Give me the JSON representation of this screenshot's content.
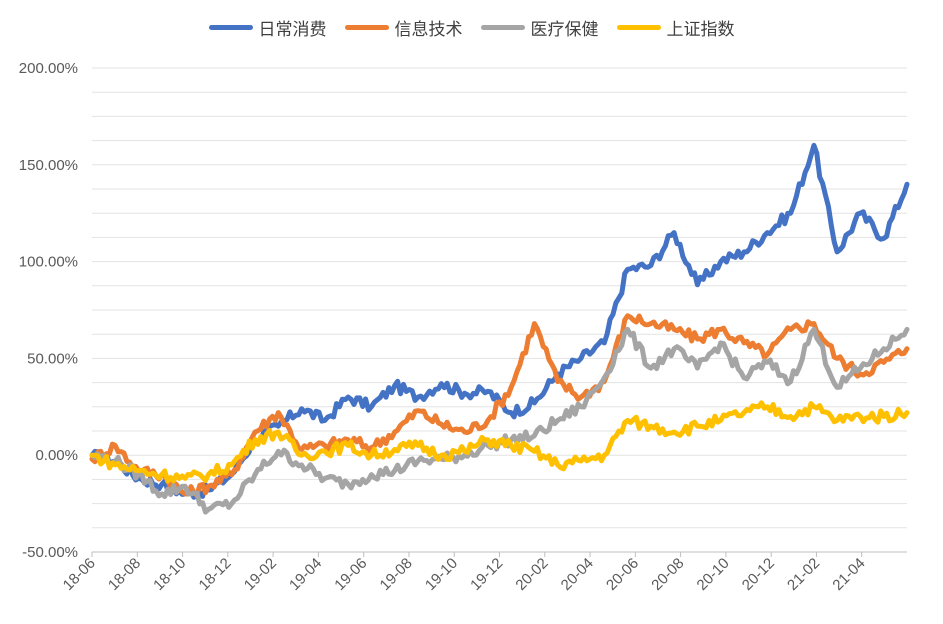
{
  "chart_data": {
    "type": "line",
    "title": "",
    "xlabel": "",
    "ylabel": "",
    "ylim": [
      -50,
      200
    ],
    "y_ticks": [
      -50,
      0,
      50,
      100,
      150,
      200
    ],
    "y_tick_labels": [
      "-50.00%",
      "0.00%",
      "50.00%",
      "100.00%",
      "150.00%",
      "200.00%"
    ],
    "x_ticks": [
      "18-06",
      "18-08",
      "18-10",
      "18-12",
      "19-02",
      "19-04",
      "19-06",
      "19-08",
      "19-10",
      "19-12",
      "20-02",
      "20-04",
      "20-06",
      "20-08",
      "20-10",
      "20-12",
      "21-02",
      "21-04"
    ],
    "grid": true,
    "legend_position": "top",
    "x": [
      0,
      1,
      2,
      3,
      4,
      5,
      6,
      7,
      8,
      9,
      10,
      11,
      12,
      13,
      14,
      15,
      16,
      17,
      18,
      19,
      20,
      21,
      22,
      23,
      24,
      25,
      26,
      27,
      28,
      29,
      30,
      31,
      32,
      33,
      34,
      35
    ],
    "series": [
      {
        "name": "日常消费",
        "color": "#4472c4",
        "values": [
          0,
          -3,
          -12,
          -15,
          -20,
          -18,
          -10,
          8,
          15,
          24,
          18,
          30,
          25,
          36,
          30,
          37,
          32,
          33,
          22,
          27,
          42,
          50,
          58,
          96,
          98,
          115,
          88,
          100,
          105,
          115,
          125,
          160,
          105,
          125,
          112,
          140
        ]
      },
      {
        "name": "信息技术",
        "color": "#ed7d31",
        "values": [
          -2,
          5,
          -8,
          -10,
          -20,
          -16,
          -10,
          12,
          22,
          3,
          5,
          8,
          4,
          12,
          23,
          16,
          12,
          18,
          35,
          68,
          38,
          30,
          38,
          72,
          68,
          65,
          60,
          65,
          58,
          52,
          65,
          68,
          50,
          42,
          48,
          55
        ]
      },
      {
        "name": "医疗保健",
        "color": "#a5a5a5",
        "values": [
          0,
          -3,
          -10,
          -20,
          -16,
          -28,
          -25,
          -10,
          2,
          -5,
          -12,
          -15,
          -10,
          -8,
          -3,
          -2,
          0,
          5,
          8,
          10,
          18,
          25,
          40,
          65,
          45,
          55,
          45,
          58,
          40,
          48,
          38,
          65,
          35,
          45,
          55,
          65
        ]
      },
      {
        "name": "上证指数",
        "color": "#ffc000",
        "values": [
          0,
          -5,
          -8,
          -10,
          -12,
          -10,
          -5,
          8,
          12,
          0,
          2,
          5,
          0,
          3,
          5,
          0,
          2,
          8,
          5,
          2,
          -5,
          -3,
          0,
          18,
          15,
          12,
          15,
          18,
          22,
          25,
          20,
          25,
          18,
          20,
          20,
          22
        ]
      }
    ]
  }
}
